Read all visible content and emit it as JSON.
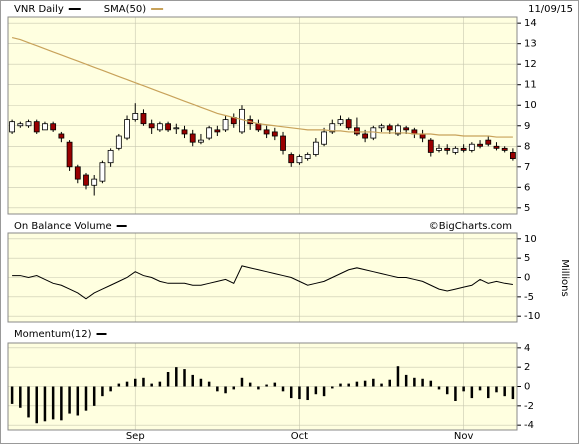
{
  "chart_data": [
    {
      "type": "candlestick",
      "date": "11/09/15",
      "ylim": [
        4.7,
        14.3
      ],
      "yticks": [
        5,
        6,
        7,
        8,
        9,
        10,
        11,
        12,
        13,
        14
      ],
      "grid": true,
      "up_color": "#ffffff",
      "down_color": "#990000",
      "series": [
        {
          "name": "VNR Daily",
          "color": "#000000",
          "open": [
            8.7,
            9.0,
            9.0,
            9.2,
            8.8,
            9.1,
            8.6,
            8.2,
            7.0,
            6.6,
            6.1,
            6.3,
            7.2,
            7.9,
            8.4,
            9.3,
            9.6,
            9.1,
            8.8,
            9.1,
            8.9,
            8.8,
            8.6,
            8.2,
            8.4,
            8.8,
            8.8,
            9.4,
            8.7,
            9.3,
            9.1,
            8.8,
            8.7,
            8.5,
            7.6,
            7.2,
            7.4,
            7.6,
            8.1,
            8.7,
            9.1,
            9.3,
            8.9,
            8.6,
            8.4,
            8.9,
            9.0,
            8.6,
            8.9,
            8.8,
            8.6,
            8.3,
            7.8,
            7.9,
            7.7,
            7.9,
            7.8,
            8.1,
            8.3,
            8.0,
            7.9,
            7.7
          ],
          "high": [
            9.3,
            9.2,
            9.3,
            9.3,
            9.2,
            9.2,
            8.7,
            8.3,
            7.1,
            6.7,
            6.6,
            7.3,
            7.9,
            8.6,
            9.5,
            10.1,
            9.8,
            9.3,
            9.2,
            9.2,
            9.1,
            9.0,
            8.8,
            8.6,
            9.0,
            9.0,
            9.5,
            9.6,
            10.0,
            9.5,
            9.3,
            9.0,
            8.9,
            8.7,
            7.7,
            7.6,
            7.7,
            8.4,
            8.9,
            9.3,
            9.5,
            9.4,
            9.4,
            8.8,
            9.0,
            9.1,
            9.1,
            9.1,
            9.0,
            8.9,
            8.8,
            8.4,
            8.1,
            8.1,
            8.0,
            8.1,
            8.2,
            8.3,
            8.5,
            8.2,
            8.0,
            7.9
          ],
          "low": [
            8.6,
            8.9,
            8.9,
            8.6,
            8.8,
            8.7,
            8.2,
            6.8,
            6.2,
            5.9,
            5.6,
            6.2,
            7.0,
            7.8,
            8.3,
            9.2,
            9.0,
            8.6,
            8.7,
            8.7,
            8.6,
            8.4,
            8.0,
            8.1,
            8.3,
            8.5,
            8.7,
            8.9,
            8.6,
            8.8,
            8.7,
            8.4,
            8.3,
            7.6,
            7.0,
            7.1,
            7.3,
            7.5,
            8.0,
            8.6,
            9.0,
            8.8,
            8.5,
            8.2,
            8.3,
            8.7,
            8.6,
            8.5,
            8.6,
            8.4,
            8.2,
            7.5,
            7.7,
            7.6,
            7.6,
            7.7,
            7.7,
            7.9,
            8.0,
            7.8,
            7.7,
            7.3
          ],
          "close": [
            9.2,
            9.1,
            9.2,
            8.7,
            9.1,
            8.8,
            8.4,
            7.0,
            6.4,
            6.1,
            6.4,
            7.2,
            7.8,
            8.5,
            9.3,
            9.6,
            9.1,
            8.9,
            9.1,
            8.8,
            8.9,
            8.6,
            8.2,
            8.3,
            8.9,
            8.7,
            9.3,
            9.1,
            9.8,
            9.1,
            8.8,
            8.6,
            8.5,
            7.8,
            7.2,
            7.5,
            7.6,
            8.2,
            8.7,
            9.1,
            9.3,
            8.9,
            8.6,
            8.4,
            8.9,
            9.0,
            8.8,
            9.0,
            8.8,
            8.6,
            8.4,
            7.7,
            7.9,
            7.8,
            7.9,
            7.8,
            8.1,
            8.0,
            8.1,
            7.9,
            7.8,
            7.4
          ]
        },
        {
          "name": "SMA(50)",
          "color": "#c8a25a",
          "values": [
            13.3,
            13.2,
            13.05,
            12.9,
            12.75,
            12.6,
            12.45,
            12.3,
            12.15,
            12.0,
            11.85,
            11.7,
            11.55,
            11.4,
            11.25,
            11.1,
            10.95,
            10.8,
            10.65,
            10.5,
            10.35,
            10.2,
            10.05,
            9.9,
            9.75,
            9.6,
            9.5,
            9.4,
            9.3,
            9.2,
            9.1,
            9.05,
            9.0,
            8.95,
            8.9,
            8.85,
            8.8,
            8.8,
            8.8,
            8.75,
            8.75,
            8.7,
            8.7,
            8.7,
            8.7,
            8.65,
            8.65,
            8.65,
            8.65,
            8.6,
            8.6,
            8.6,
            8.55,
            8.55,
            8.55,
            8.5,
            8.5,
            8.5,
            8.5,
            8.45,
            8.45,
            8.45
          ]
        }
      ]
    },
    {
      "type": "line",
      "title": "On Balance Volume",
      "annotation": "©BigCharts.com",
      "ylabel": "Millions",
      "ylim": [
        -11.5,
        11.5
      ],
      "yticks": [
        10,
        5,
        0,
        -5,
        -10
      ],
      "grid": true,
      "series": [
        {
          "color": "#000000",
          "values": [
            0.5,
            0.5,
            0,
            0.5,
            -0.5,
            -1.5,
            -2,
            -3,
            -4,
            -5.5,
            -4,
            -3,
            -2,
            -1,
            0,
            1.5,
            0.5,
            0,
            -1,
            -1.5,
            -1.5,
            -1.5,
            -2,
            -2,
            -1.5,
            -1,
            -0.5,
            -1.5,
            3,
            2.5,
            2,
            1.5,
            1,
            0.5,
            0,
            -1,
            -2,
            -1.5,
            -1,
            0,
            1,
            2,
            2.5,
            2,
            1.5,
            1,
            0.5,
            0,
            0,
            -0.5,
            -1,
            -2,
            -3,
            -3.5,
            -3,
            -2.5,
            -2,
            -0.5,
            -1.5,
            -1,
            -1.5,
            -1.8
          ]
        }
      ]
    },
    {
      "type": "bar",
      "title": "Momentum(12)",
      "ylim": [
        -4.5,
        4.5
      ],
      "yticks": [
        4,
        2,
        0,
        -2,
        -4
      ],
      "grid": true,
      "color": "#000000",
      "categories": [
        null,
        null,
        null,
        null,
        null,
        null,
        null,
        null,
        null,
        null,
        null,
        null,
        null,
        null,
        null,
        "Sep",
        null,
        null,
        null,
        null,
        null,
        null,
        null,
        null,
        null,
        null,
        null,
        null,
        null,
        null,
        null,
        null,
        null,
        null,
        null,
        "Oct",
        null,
        null,
        null,
        null,
        null,
        null,
        null,
        null,
        null,
        null,
        null,
        null,
        null,
        null,
        null,
        null,
        null,
        null,
        null,
        "Nov",
        null,
        null,
        null,
        null,
        null,
        null
      ],
      "values": [
        -1.8,
        -2.2,
        -3.2,
        -3.8,
        -3.6,
        -3.4,
        -3.5,
        -2.8,
        -3.0,
        -2.5,
        -2.0,
        -1.0,
        -0.5,
        0.3,
        0.5,
        0.8,
        0.9,
        0.3,
        0.5,
        1.5,
        2.0,
        1.8,
        1.2,
        0.8,
        0.5,
        -0.5,
        -0.7,
        -0.3,
        0.9,
        0.4,
        -0.3,
        0.2,
        0.4,
        -0.5,
        -1.2,
        -1.3,
        -1.4,
        -0.8,
        -1.0,
        -0.2,
        0.3,
        0.3,
        0.5,
        0.6,
        0.8,
        0.3,
        0.7,
        2.1,
        1.2,
        0.9,
        0.8,
        0.6,
        -0.3,
        -0.8,
        -1.5,
        -0.5,
        -1.2,
        -0.4,
        -1.2,
        -0.6,
        -1.0,
        -1.3
      ]
    }
  ]
}
